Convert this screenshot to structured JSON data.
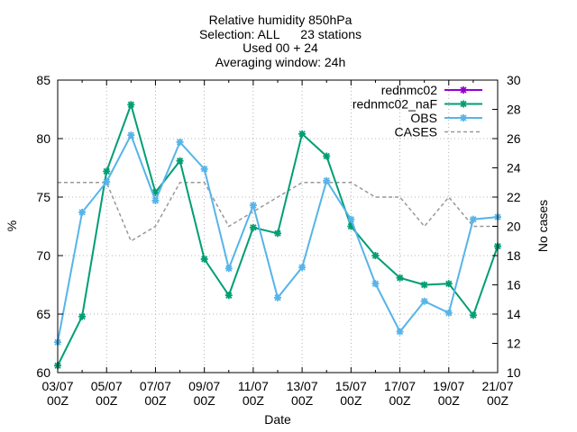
{
  "chart_data": {
    "type": "line",
    "title_lines": [
      "Relative humidity 850hPa",
      "Selection: ALL      23 stations",
      "Used 00 + 24",
      "Averaging window: 24h"
    ],
    "xlabel": "Date",
    "ylabel": "%",
    "y2label": "No cases",
    "x_tick_labels": [
      [
        "03/07",
        "00Z"
      ],
      [
        "05/07",
        "00Z"
      ],
      [
        "07/07",
        "00Z"
      ],
      [
        "09/07",
        "00Z"
      ],
      [
        "11/07",
        "00Z"
      ],
      [
        "13/07",
        "00Z"
      ],
      [
        "15/07",
        "00Z"
      ],
      [
        "17/07",
        "00Z"
      ],
      [
        "19/07",
        "00Z"
      ],
      [
        "21/07",
        "00Z"
      ]
    ],
    "x_day_range": [
      0,
      18
    ],
    "ylim": [
      60,
      85
    ],
    "y_ticks": [
      60,
      65,
      70,
      75,
      80,
      85
    ],
    "y2lim": [
      10,
      30
    ],
    "y2_ticks": [
      10,
      12,
      14,
      16,
      18,
      20,
      22,
      24,
      26,
      28,
      30
    ],
    "grid": true,
    "legend_position": "top-right",
    "series": [
      {
        "name": "rednmc02",
        "color": "#9400d3",
        "axis": "y",
        "style": "line-points",
        "x": [],
        "values": []
      },
      {
        "name": "rednmc02_naF",
        "color": "#009e73",
        "axis": "y",
        "style": "line-points",
        "x": [
          0,
          1,
          2,
          3,
          4,
          5,
          6,
          7,
          8,
          9,
          10,
          11,
          12,
          13,
          14,
          15,
          16,
          17,
          18
        ],
        "values": [
          60.6,
          64.8,
          77.2,
          82.9,
          75.4,
          78.1,
          69.7,
          66.6,
          72.4,
          71.9,
          80.4,
          78.5,
          72.5,
          70.0,
          68.1,
          67.5,
          67.6,
          64.9,
          70.8
        ]
      },
      {
        "name": "OBS",
        "color": "#56b4e9",
        "axis": "y",
        "style": "line-points",
        "x": [
          0,
          1,
          2,
          3,
          4,
          5,
          6,
          7,
          8,
          9,
          10,
          11,
          12,
          13,
          14,
          15,
          16,
          17,
          18
        ],
        "values": [
          62.6,
          73.7,
          76.3,
          80.3,
          74.7,
          79.7,
          77.4,
          68.9,
          74.3,
          66.4,
          69.0,
          76.4,
          73.1,
          67.6,
          63.5,
          66.1,
          65.1,
          73.1,
          73.3
        ]
      },
      {
        "name": "CASES",
        "color": "#999999",
        "axis": "y2",
        "style": "dashed",
        "x": [
          0,
          1,
          2,
          3,
          4,
          5,
          6,
          7,
          8,
          9,
          10,
          11,
          12,
          13,
          14,
          15,
          16,
          17,
          18
        ],
        "values": [
          23,
          23,
          23,
          19,
          20,
          23,
          23,
          20,
          21,
          22,
          23,
          23,
          23,
          22,
          22,
          20,
          22,
          20,
          20
        ]
      }
    ]
  }
}
